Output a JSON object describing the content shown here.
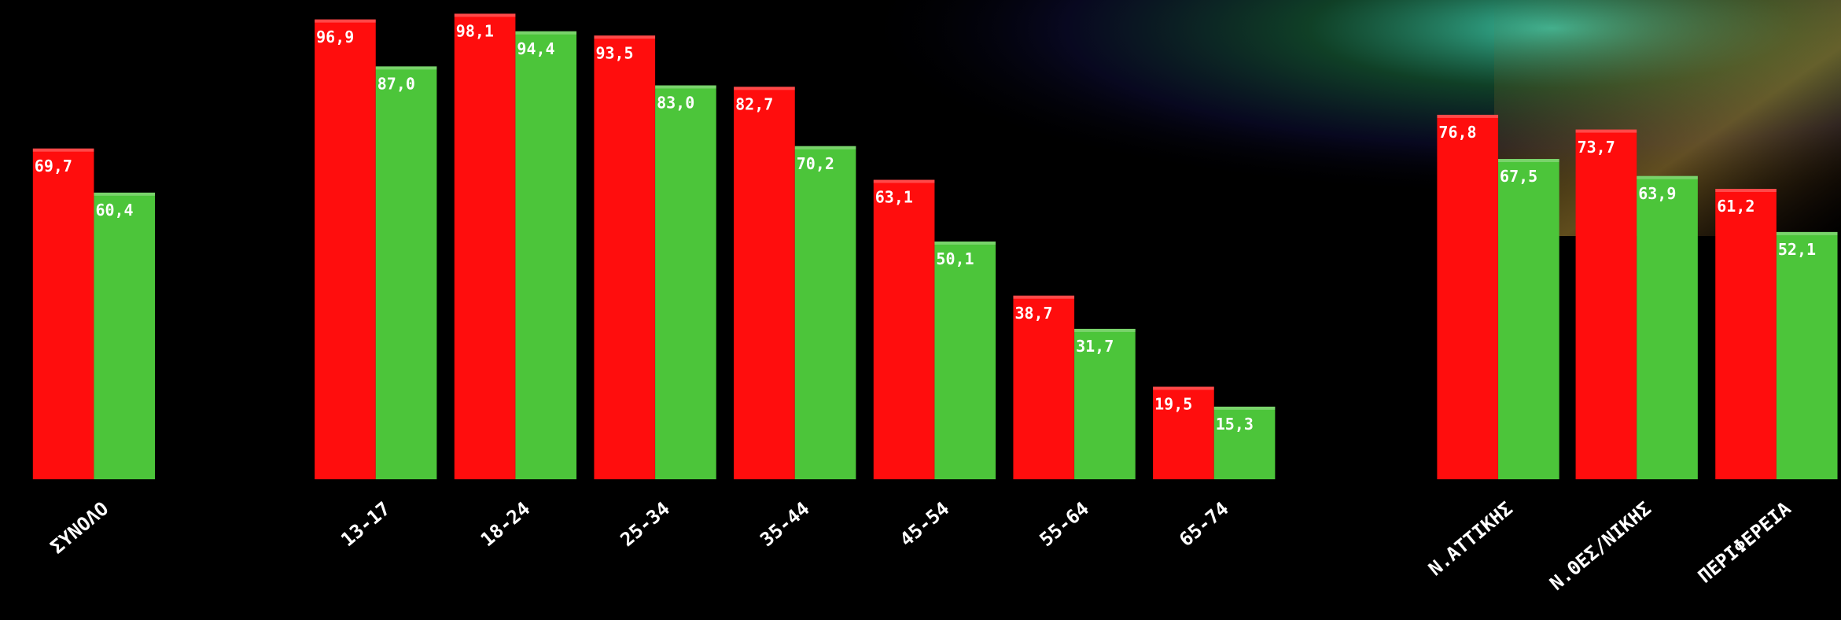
{
  "chart_data": {
    "type": "bar",
    "categories": [
      "ΣΥΝΟΛΟ",
      "13-17",
      "18-24",
      "25-34",
      "35-44",
      "45-54",
      "55-64",
      "65-74",
      "Ν.ΑΤΤΙΚΗΣ",
      "Ν.ΘΕΣ/ΝΙΚΗΣ",
      "ΠΕΡΙΦΕΡΕΙΑ"
    ],
    "series": [
      {
        "color": "#ff0d0d",
        "values": [
          69.7,
          96.9,
          98.1,
          93.5,
          82.7,
          63.1,
          38.7,
          19.5,
          76.8,
          73.7,
          61.2
        ],
        "value_labels": [
          "69,7",
          "96,9",
          "98,1",
          "93,5",
          "82,7",
          "63,1",
          "38,7",
          "19,5",
          "76,8",
          "73,7",
          "61,2"
        ]
      },
      {
        "color": "#4cc53a",
        "values": [
          60.4,
          87.0,
          94.4,
          83.0,
          70.2,
          50.1,
          31.7,
          15.3,
          67.5,
          63.9,
          52.1
        ],
        "value_labels": [
          "60,4",
          "87,0",
          "94,4",
          "83,0",
          "70,2",
          "50,1",
          "31,7",
          "15,3",
          "67,5",
          "63,9",
          "52,1"
        ]
      }
    ],
    "ylim": [
      0,
      100
    ]
  }
}
